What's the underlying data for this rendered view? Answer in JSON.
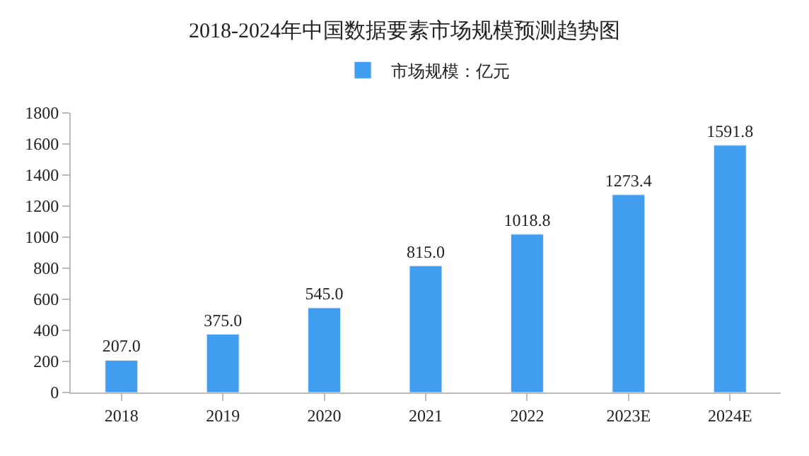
{
  "chart_data": {
    "type": "bar",
    "title": "2018-2024年中国数据要素市场规模预测趋势图",
    "categories": [
      "2018",
      "2019",
      "2020",
      "2021",
      "2022",
      "2023E",
      "2024E"
    ],
    "series": [
      {
        "name": "市场规模：亿元",
        "color": "#419df0",
        "values": [
          207.0,
          375.0,
          545.0,
          815.0,
          1018.8,
          1273.4,
          1591.8
        ],
        "value_labels": [
          "207.0",
          "375.0",
          "545.0",
          "815.0",
          "1018.8",
          "1273.4",
          "1591.8"
        ]
      }
    ],
    "ylim": [
      0,
      1800
    ],
    "yticks": [
      0,
      200,
      400,
      600,
      800,
      1000,
      1200,
      1400,
      1600,
      1800
    ],
    "legend": "top"
  }
}
